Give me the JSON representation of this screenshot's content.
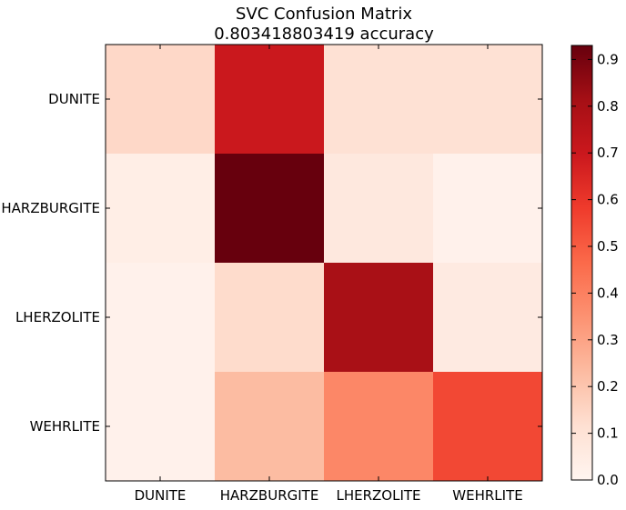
{
  "chart_data": {
    "type": "heatmap",
    "title": "SVC Confusion Matrix",
    "subtitle": "0.803418803419 accuracy",
    "row_labels": [
      "DUNITE",
      "HARZBURGITE",
      "LHERZOLITE",
      "WEHRLITE"
    ],
    "col_labels": [
      "DUNITE",
      "HARZBURGITE",
      "LHERZOLITE",
      "WEHRLITE"
    ],
    "values": [
      [
        0.14,
        0.7,
        0.11,
        0.11
      ],
      [
        0.04,
        0.93,
        0.07,
        0.02
      ],
      [
        0.02,
        0.13,
        0.8,
        0.06
      ],
      [
        0.02,
        0.23,
        0.38,
        0.55
      ]
    ],
    "colormap": "Reds",
    "colorbar": {
      "min": 0.0,
      "max": 0.93,
      "ticks": [
        "0.0",
        "0.1",
        "0.2",
        "0.3",
        "0.4",
        "0.5",
        "0.6",
        "0.7",
        "0.8",
        "0.9"
      ]
    }
  }
}
